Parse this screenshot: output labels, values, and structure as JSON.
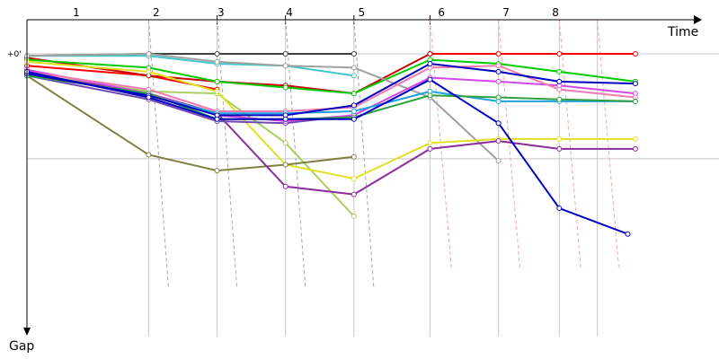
{
  "chart_data": {
    "type": "line",
    "xlabel": "Time",
    "ylabel": "Gap",
    "y_tick_labels": [
      {
        "label": "+0'",
        "value": 0
      }
    ],
    "grid": true,
    "x_range": [
      0,
      9.1
    ],
    "y_range": [
      0,
      6.8
    ],
    "lap_labels": [
      {
        "label": "1",
        "x": 0.65
      },
      {
        "label": "2",
        "x": 1.7
      },
      {
        "label": "3",
        "x": 2.55
      },
      {
        "label": "4",
        "x": 3.45
      },
      {
        "label": "5",
        "x": 4.4
      },
      {
        "label": "6",
        "x": 5.45
      },
      {
        "label": "7",
        "x": 6.3
      },
      {
        "label": "8",
        "x": 6.95
      }
    ],
    "lap_boundaries": [
      1.6,
      2.5,
      3.4,
      4.3,
      5.3,
      6.2,
      7.0,
      7.5
    ],
    "boundary_ticks": [
      0,
      1,
      1,
      1,
      1,
      0,
      0,
      0
    ],
    "series": [
      {
        "color": "#404040",
        "points": [
          [
            0,
            0.05
          ],
          [
            1.6,
            0
          ],
          [
            2.5,
            0
          ],
          [
            3.4,
            0
          ],
          [
            4.3,
            0
          ]
        ]
      },
      {
        "color": "#ff0000",
        "points": [
          [
            5.3,
            0
          ],
          [
            6.2,
            0
          ],
          [
            7.0,
            0
          ],
          [
            8.0,
            0
          ]
        ]
      },
      {
        "color": "#ff0000",
        "points": [
          [
            0,
            0.3
          ],
          [
            1.6,
            0.55
          ],
          [
            2.5,
            0.9
          ]
        ]
      },
      {
        "color": "#cc0000",
        "points": [
          [
            0,
            0.1
          ],
          [
            1.6,
            0.55
          ],
          [
            2.5,
            0.7
          ],
          [
            3.4,
            0.8
          ],
          [
            4.3,
            1.0
          ],
          [
            5.3,
            0
          ]
        ]
      },
      {
        "color": "#00cc00",
        "points": [
          [
            0,
            0.15
          ],
          [
            1.6,
            0.35
          ],
          [
            2.5,
            0.7
          ],
          [
            3.4,
            0.85
          ],
          [
            4.3,
            1.0
          ],
          [
            5.3,
            0.15
          ],
          [
            6.2,
            0.25
          ],
          [
            7.0,
            0.45
          ],
          [
            8.0,
            0.7
          ]
        ]
      },
      {
        "color": "#40c8c8",
        "points": [
          [
            0,
            0.05
          ],
          [
            1.6,
            0.05
          ],
          [
            2.5,
            0.25
          ],
          [
            3.4,
            0.3
          ],
          [
            4.3,
            0.55
          ]
        ]
      },
      {
        "color": "#a0a0a0",
        "points": [
          [
            0,
            0.05
          ],
          [
            1.6,
            0.0
          ],
          [
            2.5,
            0.2
          ],
          [
            3.4,
            0.3
          ],
          [
            4.3,
            0.35
          ],
          [
            5.3,
            1.1
          ],
          [
            6.2,
            2.7
          ]
        ]
      },
      {
        "color": "#a8d060",
        "points": [
          [
            0,
            0.5
          ],
          [
            1.6,
            0.95
          ],
          [
            2.5,
            1.0
          ],
          [
            3.4,
            2.25
          ],
          [
            4.3,
            4.1
          ]
        ]
      },
      {
        "color": "#e0e020",
        "points": [
          [
            0,
            0.2
          ],
          [
            1.6,
            0.45
          ],
          [
            2.5,
            0.95
          ],
          [
            3.4,
            2.8
          ],
          [
            4.3,
            3.15
          ],
          [
            5.3,
            2.25
          ],
          [
            6.2,
            2.15
          ],
          [
            7.0,
            2.15
          ],
          [
            8.0,
            2.15
          ]
        ]
      },
      {
        "color": "#808040",
        "points": [
          [
            0,
            0.55
          ],
          [
            1.6,
            2.55
          ],
          [
            2.5,
            2.95
          ],
          [
            3.4,
            2.8
          ],
          [
            4.3,
            2.6
          ]
        ]
      },
      {
        "color": "#8b2c9b",
        "points": [
          [
            0,
            0.5
          ],
          [
            1.6,
            1.0
          ],
          [
            2.5,
            1.5
          ],
          [
            3.4,
            3.35
          ],
          [
            4.3,
            3.55
          ],
          [
            5.3,
            2.4
          ],
          [
            6.2,
            2.2
          ],
          [
            7.0,
            2.4
          ],
          [
            8.0,
            2.4
          ]
        ]
      },
      {
        "color": "#6e46b4",
        "points": [
          [
            0,
            0.55
          ],
          [
            1.6,
            1.15
          ],
          [
            2.5,
            1.7
          ],
          [
            3.4,
            1.75
          ],
          [
            4.3,
            1.55
          ]
        ]
      },
      {
        "color": "#d048e8",
        "points": [
          [
            0,
            0.4
          ],
          [
            1.6,
            1.0
          ],
          [
            2.5,
            1.55
          ],
          [
            3.4,
            1.7
          ],
          [
            4.3,
            1.55
          ],
          [
            5.3,
            0.6
          ],
          [
            6.2,
            0.7
          ],
          [
            7.0,
            0.8
          ],
          [
            8.0,
            1.0
          ]
        ]
      },
      {
        "color": "#f07ab0",
        "points": [
          [
            0,
            0.45
          ],
          [
            1.6,
            0.9
          ],
          [
            2.5,
            1.45
          ],
          [
            3.4,
            1.45
          ],
          [
            4.3,
            1.35
          ],
          [
            5.3,
            0.35
          ],
          [
            6.2,
            0.3
          ],
          [
            7.0,
            0.9
          ],
          [
            8.0,
            1.1
          ]
        ]
      },
      {
        "color": "#20a0e0",
        "points": [
          [
            0,
            0.5
          ],
          [
            1.6,
            1.05
          ],
          [
            2.5,
            1.5
          ],
          [
            3.4,
            1.5
          ],
          [
            4.3,
            1.45
          ],
          [
            5.3,
            0.95
          ],
          [
            6.2,
            1.2
          ],
          [
            7.0,
            1.2
          ],
          [
            8.0,
            1.2
          ]
        ]
      },
      {
        "color": "#30a040",
        "points": [
          [
            0,
            0.55
          ],
          [
            1.6,
            1.0
          ],
          [
            2.5,
            1.65
          ],
          [
            3.4,
            1.65
          ],
          [
            4.3,
            1.6
          ],
          [
            5.3,
            1.05
          ],
          [
            6.2,
            1.1
          ],
          [
            7.0,
            1.15
          ],
          [
            8.0,
            1.2
          ]
        ]
      },
      {
        "color": "#0000c0",
        "points": [
          [
            0,
            0.5
          ],
          [
            1.6,
            1.05
          ],
          [
            2.5,
            1.55
          ],
          [
            3.4,
            1.55
          ],
          [
            4.3,
            1.3
          ],
          [
            5.3,
            0.25
          ],
          [
            6.2,
            0.45
          ],
          [
            7.0,
            0.7
          ],
          [
            8.0,
            0.75
          ]
        ]
      },
      {
        "color": "#0000c0",
        "points": [
          [
            0,
            0.45
          ],
          [
            1.6,
            1.1
          ],
          [
            2.5,
            1.65
          ],
          [
            3.4,
            1.65
          ],
          [
            4.3,
            1.65
          ],
          [
            5.3,
            0.65
          ],
          [
            6.2,
            1.75
          ],
          [
            7.0,
            3.9
          ],
          [
            7.9,
            4.55
          ]
        ]
      }
    ]
  }
}
